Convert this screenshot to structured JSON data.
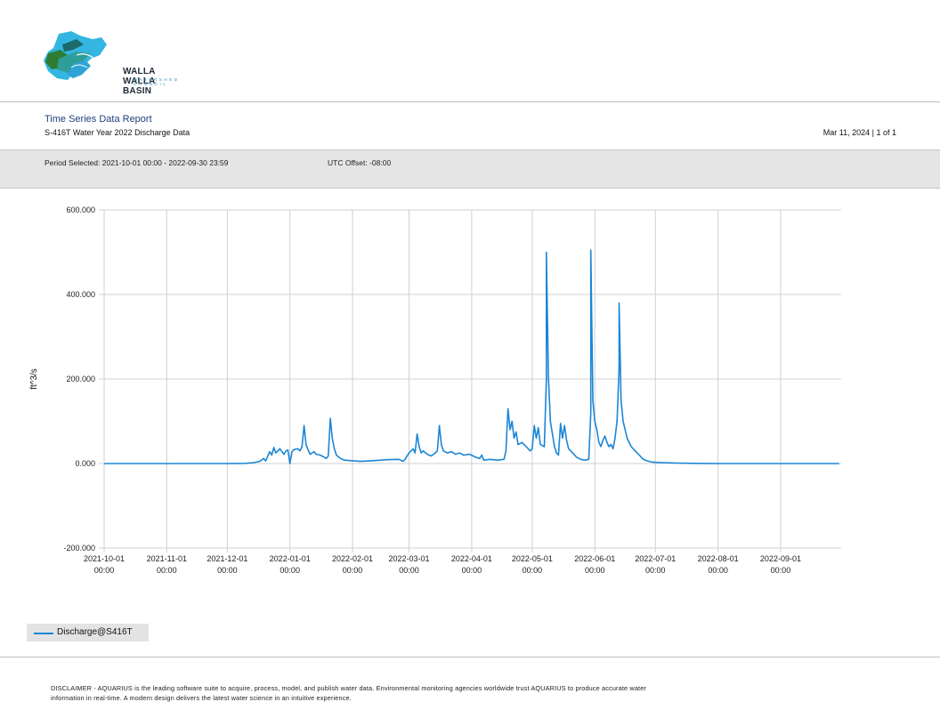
{
  "header": {
    "logo_title": "WALLA WALLA BASIN",
    "logo_subtitle": "WATERSHED COUNCIL",
    "report_title": "Time Series Data Report",
    "report_subtitle": "S-416T Water Year 2022 Discharge Data",
    "date_page": "Mar 11, 2024 | 1 of 1"
  },
  "info_bar": {
    "period": "Period Selected: 2021-10-01 00:00 - 2022-09-30 23:59",
    "utc": "UTC Offset: -08:00"
  },
  "colors": {
    "series": "#1b86d6",
    "grid": "#d0d0d0",
    "band": "#e5e5e5"
  },
  "chart_data": {
    "type": "line",
    "ylabel": "ft^3/s",
    "ylim": [
      -200,
      600
    ],
    "yticks": [
      "600.000",
      "400.000",
      "200.000",
      "0.000",
      "-200.000"
    ],
    "ytick_values": [
      600,
      400,
      200,
      0,
      -200
    ],
    "xlim": [
      "2021-10-01",
      "2022-09-30"
    ],
    "xticks": [
      {
        "date": "2021-10-01",
        "label1": "2021-10-01",
        "label2": "00:00"
      },
      {
        "date": "2021-11-01",
        "label1": "2021-11-01",
        "label2": "00:00"
      },
      {
        "date": "2021-12-01",
        "label1": "2021-12-01",
        "label2": "00:00"
      },
      {
        "date": "2022-01-01",
        "label1": "2022-01-01",
        "label2": "00:00"
      },
      {
        "date": "2022-02-01",
        "label1": "2022-02-01",
        "label2": "00:00"
      },
      {
        "date": "2022-03-01",
        "label1": "2022-03-01",
        "label2": "00:00"
      },
      {
        "date": "2022-04-01",
        "label1": "2022-04-01",
        "label2": "00:00"
      },
      {
        "date": "2022-05-01",
        "label1": "2022-05-01",
        "label2": "00:00"
      },
      {
        "date": "2022-06-01",
        "label1": "2022-06-01",
        "label2": "00:00"
      },
      {
        "date": "2022-07-01",
        "label1": "2022-07-01",
        "label2": "00:00"
      },
      {
        "date": "2022-08-01",
        "label1": "2022-08-01",
        "label2": "00:00"
      },
      {
        "date": "2022-09-01",
        "label1": "2022-09-01",
        "label2": "00:00"
      }
    ],
    "grid": true,
    "legend_placement": "bottom-left",
    "series": [
      {
        "name": "Discharge@S416T",
        "points": [
          [
            "2021-10-01",
            0
          ],
          [
            "2021-11-01",
            0
          ],
          [
            "2021-12-01",
            0
          ],
          [
            "2021-12-10",
            0.5
          ],
          [
            "2021-12-14",
            2
          ],
          [
            "2021-12-17",
            5
          ],
          [
            "2021-12-19",
            12
          ],
          [
            "2021-12-20",
            6
          ],
          [
            "2021-12-22",
            28
          ],
          [
            "2021-12-23",
            20
          ],
          [
            "2021-12-24",
            38
          ],
          [
            "2021-12-25",
            25
          ],
          [
            "2021-12-27",
            35
          ],
          [
            "2021-12-29",
            22
          ],
          [
            "2021-12-30",
            30
          ],
          [
            "2021-12-31",
            32
          ],
          [
            "2022-01-01",
            0
          ],
          [
            "2022-01-02",
            28
          ],
          [
            "2022-01-03",
            33
          ],
          [
            "2022-01-05",
            35
          ],
          [
            "2022-01-06",
            30
          ],
          [
            "2022-01-07",
            40
          ],
          [
            "2022-01-08",
            90
          ],
          [
            "2022-01-09",
            45
          ],
          [
            "2022-01-10",
            32
          ],
          [
            "2022-01-11",
            22
          ],
          [
            "2022-01-13",
            28
          ],
          [
            "2022-01-14",
            22
          ],
          [
            "2022-01-16",
            20
          ],
          [
            "2022-01-18",
            15
          ],
          [
            "2022-01-19",
            12
          ],
          [
            "2022-01-20",
            18
          ],
          [
            "2022-01-21",
            107
          ],
          [
            "2022-01-22",
            60
          ],
          [
            "2022-01-23",
            35
          ],
          [
            "2022-01-24",
            20
          ],
          [
            "2022-01-26",
            12
          ],
          [
            "2022-01-28",
            8
          ],
          [
            "2022-02-05",
            5
          ],
          [
            "2022-02-12",
            7
          ],
          [
            "2022-02-18",
            9
          ],
          [
            "2022-02-24",
            10
          ],
          [
            "2022-02-26",
            5
          ],
          [
            "2022-02-27",
            10
          ],
          [
            "2022-03-01",
            25
          ],
          [
            "2022-03-02",
            30
          ],
          [
            "2022-03-03",
            35
          ],
          [
            "2022-03-04",
            25
          ],
          [
            "2022-03-05",
            70
          ],
          [
            "2022-03-06",
            40
          ],
          [
            "2022-03-07",
            25
          ],
          [
            "2022-03-08",
            30
          ],
          [
            "2022-03-10",
            22
          ],
          [
            "2022-03-12",
            18
          ],
          [
            "2022-03-14",
            25
          ],
          [
            "2022-03-15",
            30
          ],
          [
            "2022-03-16",
            90
          ],
          [
            "2022-03-17",
            45
          ],
          [
            "2022-03-18",
            30
          ],
          [
            "2022-03-20",
            25
          ],
          [
            "2022-03-22",
            28
          ],
          [
            "2022-03-24",
            22
          ],
          [
            "2022-03-26",
            25
          ],
          [
            "2022-03-28",
            20
          ],
          [
            "2022-03-31",
            22
          ],
          [
            "2022-04-03",
            15
          ],
          [
            "2022-04-05",
            12
          ],
          [
            "2022-04-06",
            20
          ],
          [
            "2022-04-07",
            8
          ],
          [
            "2022-04-10",
            10
          ],
          [
            "2022-04-14",
            8
          ],
          [
            "2022-04-17",
            10
          ],
          [
            "2022-04-18",
            30
          ],
          [
            "2022-04-19",
            130
          ],
          [
            "2022-04-20",
            80
          ],
          [
            "2022-04-21",
            100
          ],
          [
            "2022-04-22",
            60
          ],
          [
            "2022-04-23",
            75
          ],
          [
            "2022-04-24",
            45
          ],
          [
            "2022-04-26",
            50
          ],
          [
            "2022-04-28",
            40
          ],
          [
            "2022-04-30",
            30
          ],
          [
            "2022-05-01",
            35
          ],
          [
            "2022-05-02",
            90
          ],
          [
            "2022-05-03",
            60
          ],
          [
            "2022-05-04",
            85
          ],
          [
            "2022-05-05",
            45
          ],
          [
            "2022-05-07",
            40
          ],
          [
            "2022-05-08",
            200
          ],
          [
            "2022-05-08",
            500
          ],
          [
            "2022-05-09",
            205
          ],
          [
            "2022-05-10",
            100
          ],
          [
            "2022-05-11",
            70
          ],
          [
            "2022-05-12",
            40
          ],
          [
            "2022-05-13",
            25
          ],
          [
            "2022-05-14",
            20
          ],
          [
            "2022-05-15",
            95
          ],
          [
            "2022-05-16",
            60
          ],
          [
            "2022-05-17",
            90
          ],
          [
            "2022-05-18",
            55
          ],
          [
            "2022-05-19",
            35
          ],
          [
            "2022-05-21",
            25
          ],
          [
            "2022-05-23",
            15
          ],
          [
            "2022-05-25",
            10
          ],
          [
            "2022-05-27",
            8
          ],
          [
            "2022-05-29",
            10
          ],
          [
            "2022-05-30",
            120
          ],
          [
            "2022-05-30",
            505
          ],
          [
            "2022-05-31",
            150
          ],
          [
            "2022-06-01",
            100
          ],
          [
            "2022-06-02",
            80
          ],
          [
            "2022-06-03",
            50
          ],
          [
            "2022-06-04",
            40
          ],
          [
            "2022-06-05",
            55
          ],
          [
            "2022-06-06",
            65
          ],
          [
            "2022-06-07",
            50
          ],
          [
            "2022-06-08",
            40
          ],
          [
            "2022-06-09",
            45
          ],
          [
            "2022-06-10",
            35
          ],
          [
            "2022-06-11",
            60
          ],
          [
            "2022-06-12",
            100
          ],
          [
            "2022-06-13",
            225
          ],
          [
            "2022-06-13",
            380
          ],
          [
            "2022-06-14",
            150
          ],
          [
            "2022-06-15",
            100
          ],
          [
            "2022-06-17",
            60
          ],
          [
            "2022-06-19",
            40
          ],
          [
            "2022-06-21",
            30
          ],
          [
            "2022-06-23",
            20
          ],
          [
            "2022-06-25",
            10
          ],
          [
            "2022-06-27",
            6
          ],
          [
            "2022-06-30",
            3
          ],
          [
            "2022-07-05",
            2
          ],
          [
            "2022-07-12",
            1
          ],
          [
            "2022-07-20",
            0.5
          ],
          [
            "2022-08-01",
            0
          ],
          [
            "2022-09-01",
            0
          ],
          [
            "2022-09-30",
            0
          ]
        ]
      }
    ]
  },
  "legend": {
    "label": "Discharge@S416T"
  },
  "footer": {
    "disclaimer_line1": "DISCLAIMER - AQUARIUS is the leading software suite to acquire, process, model, and publish water data. Environmental monitoring agencies worldwide trust AQUARIUS to produce accurate water",
    "disclaimer_line2": "information in real-time. A modern design delivers the latest water science in an intuitive experience."
  }
}
